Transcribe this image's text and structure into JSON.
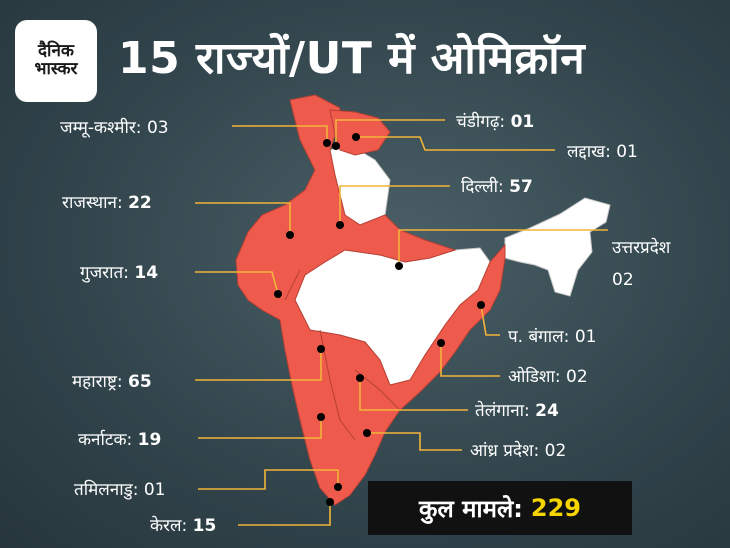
{
  "brand": {
    "line1": "दैनिक",
    "line2": "भास्कर"
  },
  "title": "15 राज्यों/UT में ओमिक्रॉन",
  "total": {
    "label": "कुल मामले:",
    "value": "229"
  },
  "colors": {
    "affected": "#ee5a4c",
    "unaffected": "#ffffff",
    "leader": "#f2b43a",
    "highlight": "#f5d400"
  },
  "states": [
    {
      "key": "jk",
      "name": "जम्मू-कश्मीर:",
      "count": "03"
    },
    {
      "key": "chd",
      "name": "चंडीगढ़:",
      "count": "01"
    },
    {
      "key": "ladakh",
      "name": "लद्दाख:",
      "count": "01"
    },
    {
      "key": "rajasthan",
      "name": "राजस्थान:",
      "count": "22"
    },
    {
      "key": "delhi",
      "name": "दिल्ली:",
      "count": "57"
    },
    {
      "key": "gujarat",
      "name": "गुजरात:",
      "count": "14"
    },
    {
      "key": "up",
      "name": "उत्तरप्रदेश",
      "count": "02"
    },
    {
      "key": "wb",
      "name": "प. बंगाल:",
      "count": "01"
    },
    {
      "key": "maharashtra",
      "name": "महाराष्ट्र:",
      "count": "65"
    },
    {
      "key": "odisha",
      "name": "ओडिशा:",
      "count": "02"
    },
    {
      "key": "telangana",
      "name": "तेलंगाना:",
      "count": "24"
    },
    {
      "key": "karnataka",
      "name": "कर्नाटक:",
      "count": "19"
    },
    {
      "key": "ap",
      "name": "आंध्र प्रदेश:",
      "count": "02"
    },
    {
      "key": "tn",
      "name": "तमिलनाडु:",
      "count": "01"
    },
    {
      "key": "kerala",
      "name": "केरल:",
      "count": "15"
    }
  ]
}
